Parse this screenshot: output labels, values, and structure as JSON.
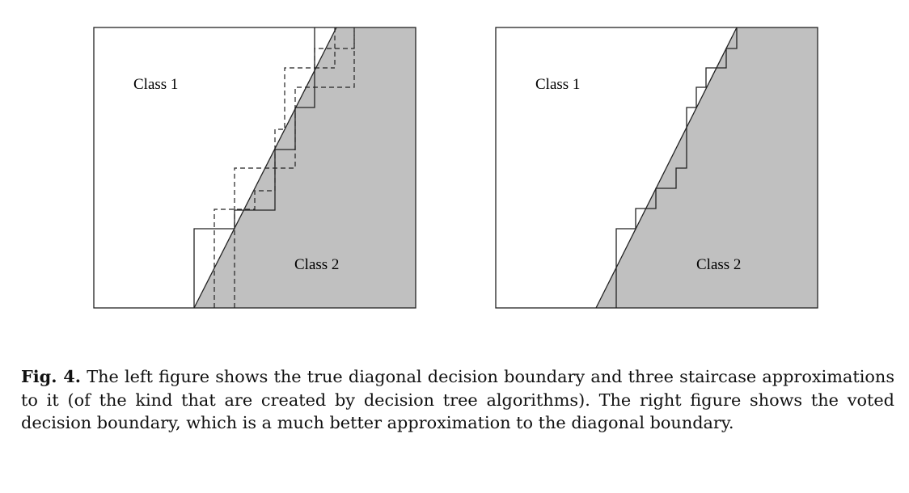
{
  "figures": {
    "left": {
      "region_labels": {
        "class1": "Class 1",
        "class2": "Class 2"
      },
      "boundary_style": "diagonal",
      "staircases": 3
    },
    "right": {
      "region_labels": {
        "class1": "Class 1",
        "class2": "Class 2"
      },
      "boundary_style": "diagonal",
      "staircases": 1
    }
  },
  "colors": {
    "class2_fill": "#c0c0c0",
    "stroke": "#222222"
  },
  "caption": {
    "label": "Fig. 4.",
    "text": "The left figure shows the true diagonal decision boundary and three staircase approximations to it (of the kind that are created by decision tree algorithms). The right figure shows the voted decision boundary, which is a much better approximation to the diagonal boundary."
  }
}
